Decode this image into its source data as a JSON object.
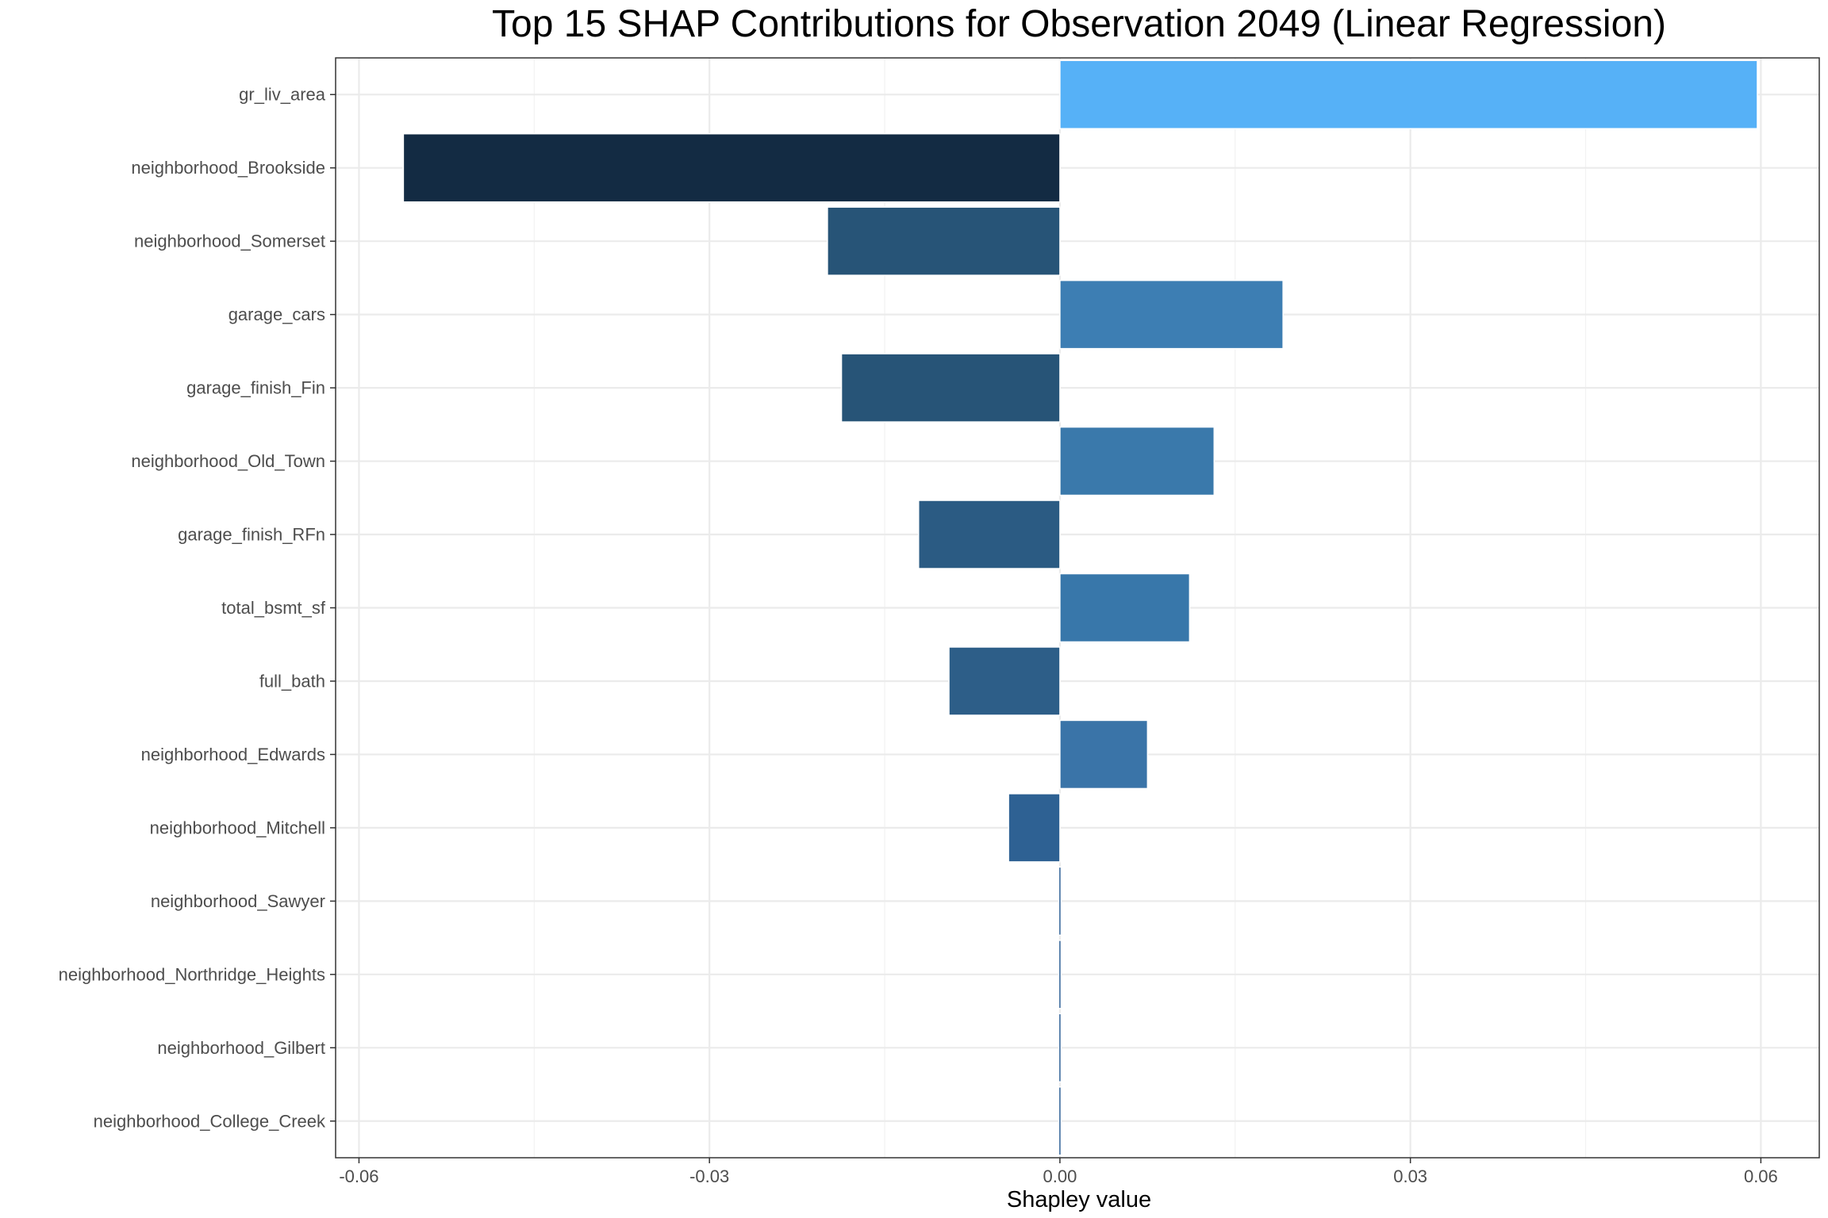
{
  "chart_data": {
    "type": "bar",
    "orientation": "horizontal",
    "title": "Top 15 SHAP Contributions for Observation 2049 (Linear Regression)",
    "xlabel": "Shapley value",
    "ylabel": "",
    "xlim": [
      -0.062,
      0.065
    ],
    "xticks": [
      -0.06,
      -0.03,
      0.0,
      0.03,
      0.06
    ],
    "xtick_labels": [
      "-0.06",
      "-0.03",
      "0.00",
      "0.03",
      "0.06"
    ],
    "grid": true,
    "legend": "none",
    "categories": [
      "gr_liv_area",
      "neighborhood_Brookside",
      "neighborhood_Somerset",
      "garage_cars",
      "garage_finish_Fin",
      "neighborhood_Old_Town",
      "garage_finish_RFn",
      "total_bsmt_sf",
      "full_bath",
      "neighborhood_Edwards",
      "neighborhood_Mitchell",
      "neighborhood_Sawyer",
      "neighborhood_Northridge_Heights",
      "neighborhood_Gilbert",
      "neighborhood_College_Creek"
    ],
    "values": [
      0.0597,
      -0.0562,
      -0.0199,
      0.0191,
      -0.0187,
      0.0132,
      -0.0121,
      0.0111,
      -0.0095,
      0.0075,
      -0.0044,
      -0.0002,
      -0.0002,
      -0.0002,
      -0.0002
    ],
    "colors": [
      "#56b1f7",
      "#132b43",
      "#275477",
      "#3d7eb3",
      "#275477",
      "#3a79ab",
      "#2b5b83",
      "#3877aa",
      "#2d5e88",
      "#3a74a8",
      "#2e6193",
      "#2f6196",
      "#2f6196",
      "#2f6196",
      "#2f6196"
    ]
  }
}
